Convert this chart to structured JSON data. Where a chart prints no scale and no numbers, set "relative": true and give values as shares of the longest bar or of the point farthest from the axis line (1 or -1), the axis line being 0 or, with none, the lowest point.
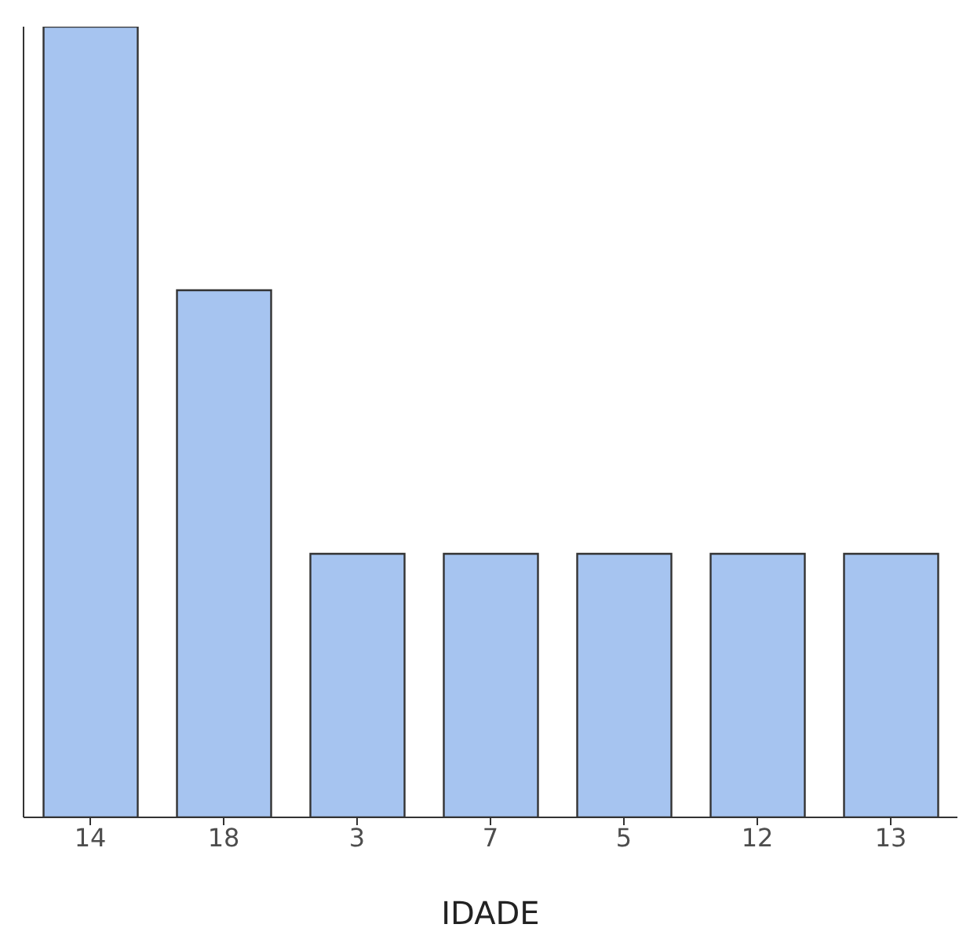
{
  "chart_data": {
    "type": "bar",
    "xlabel": "IDADE",
    "categories": [
      "14",
      "18",
      "3",
      "7",
      "5",
      "12",
      "13"
    ],
    "values": [
      1,
      0.6667,
      0.3333,
      0.3333,
      0.3333,
      0.3333,
      0.3333
    ],
    "color": "#a6c4f0",
    "relative": true,
    "grid": false,
    "legend": false
  }
}
